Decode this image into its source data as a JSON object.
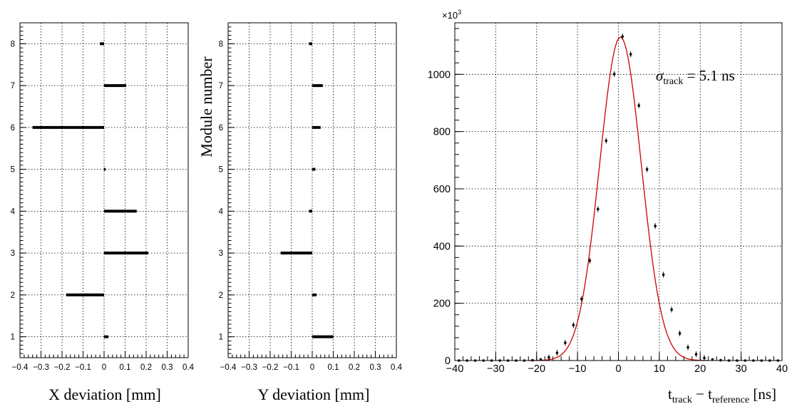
{
  "chart_data": [
    {
      "type": "bar",
      "orientation": "horizontal",
      "xlabel": "X deviation [mm]",
      "ylabel": "",
      "xlim": [
        -0.4,
        0.4
      ],
      "ylim": [
        0.5,
        8.5
      ],
      "grid": true,
      "x_ticks": [
        "−0.4",
        "−0.3",
        "−0.2",
        "−0.1",
        "0",
        "0.1",
        "0.2",
        "0.3",
        "0.4"
      ],
      "y_ticks": [
        "1",
        "2",
        "3",
        "4",
        "5",
        "6",
        "7",
        "8"
      ],
      "categories": [
        1,
        2,
        3,
        4,
        5,
        6,
        7,
        8
      ],
      "values": [
        0.02,
        -0.18,
        0.21,
        0.155,
        0.005,
        -0.34,
        0.105,
        -0.02
      ]
    },
    {
      "type": "bar",
      "orientation": "horizontal",
      "xlabel": "Y deviation [mm]",
      "ylabel": "Module number",
      "xlim": [
        -0.4,
        0.4
      ],
      "ylim": [
        0.5,
        8.5
      ],
      "grid": true,
      "x_ticks": [
        "−0.4",
        "−0.3",
        "−0.2",
        "−0.1",
        "0",
        "0.1",
        "0.2",
        "0.3",
        "0.4"
      ],
      "y_ticks": [
        "1",
        "2",
        "3",
        "4",
        "5",
        "6",
        "7",
        "8"
      ],
      "categories": [
        1,
        2,
        3,
        4,
        5,
        6,
        7,
        8
      ],
      "values": [
        0.1,
        0.02,
        -0.15,
        -0.015,
        0.015,
        0.04,
        0.05,
        -0.015
      ]
    },
    {
      "type": "scatter",
      "x_label_main": "t",
      "x_label_sub1": "track",
      "x_label_mid": " − t",
      "x_label_sub2": "reference",
      "x_label_end": " [ns]",
      "ylabel": "",
      "y_multiplier": "×10",
      "y_multiplier_exp": "3",
      "xlim": [
        -40,
        40
      ],
      "ylim": [
        0,
        1180
      ],
      "grid": true,
      "x_ticks": [
        "−40",
        "−30",
        "−20",
        "−10",
        "0",
        "10",
        "20",
        "30",
        "40"
      ],
      "y_ticks": [
        "0",
        "200",
        "400",
        "600",
        "800",
        "1000"
      ],
      "annotation_sigma": "σ",
      "annotation_sub": "track",
      "annotation_value": " = 5.1 ns",
      "fit": {
        "type": "gaussian",
        "mean": 0.5,
        "sigma": 5.1,
        "amplitude": 1130,
        "color": "#cc0000"
      },
      "points": {
        "x": [
          -41,
          -39,
          -37,
          -35,
          -33,
          -31,
          -29,
          -27,
          -25,
          -23,
          -21,
          -19,
          -17,
          -15,
          -13,
          -11,
          -9,
          -7,
          -5,
          -3,
          -1,
          1,
          3,
          5,
          7,
          9,
          11,
          13,
          15,
          17,
          19,
          21,
          23,
          25,
          27,
          29,
          31,
          33,
          35,
          37,
          39,
          41
        ],
        "y": [
          0,
          0,
          0,
          0,
          0,
          0,
          0,
          0,
          0,
          0,
          1,
          4,
          11,
          27,
          62,
          124,
          215,
          349,
          529,
          768,
          1001,
          1132,
          1070,
          891,
          668,
          470,
          300,
          178,
          95,
          46,
          22,
          9,
          4,
          1,
          0,
          0,
          0,
          0,
          0,
          0,
          0,
          0
        ],
        "color": "#000000"
      }
    }
  ]
}
